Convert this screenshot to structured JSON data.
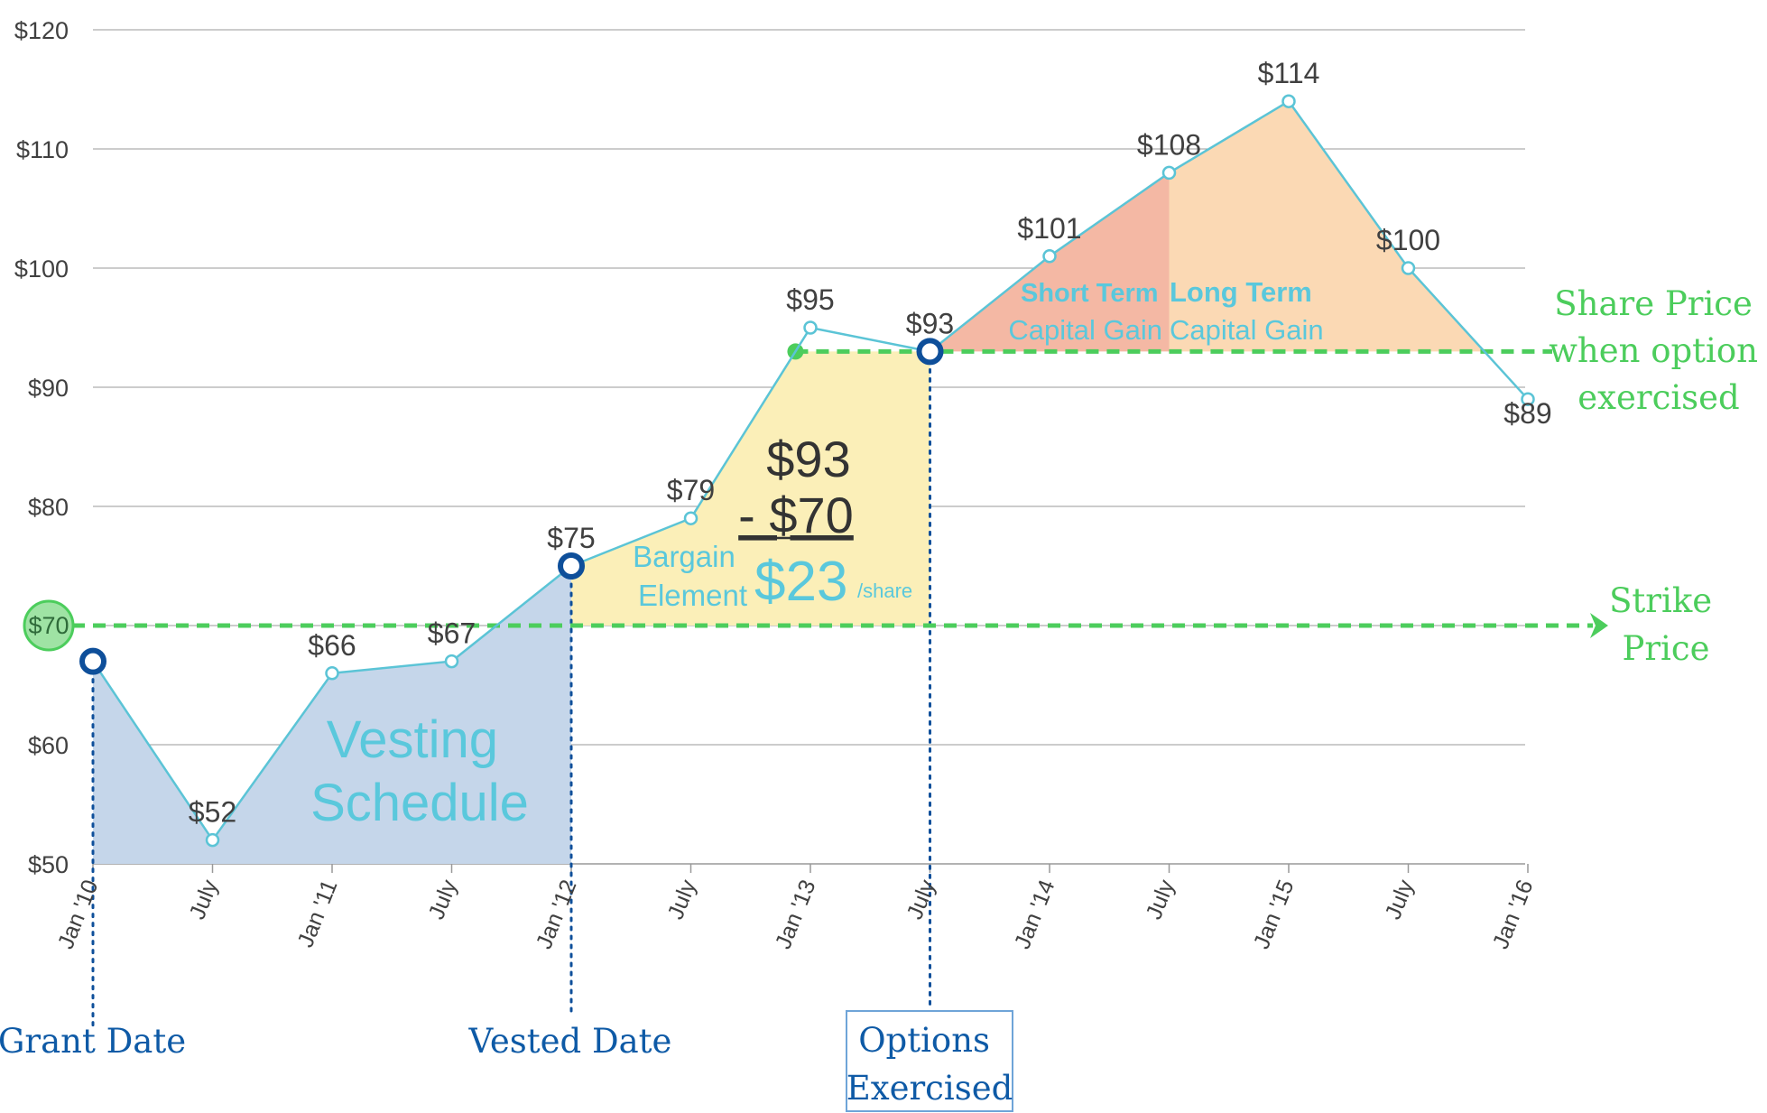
{
  "chart_data": {
    "type": "line",
    "x": [
      "Jan '10",
      "July",
      "Jan '11",
      "July",
      "Jan '12",
      "July",
      "Jan '13",
      "July",
      "Jan '14",
      "July",
      "Jan '15",
      "July",
      "Jan '16"
    ],
    "series": [
      {
        "values": [
          67,
          52,
          66,
          67,
          75,
          79,
          95,
          93,
          101,
          108,
          114,
          100,
          89
        ]
      }
    ],
    "data_labels": [
      "",
      "$52",
      "$66",
      "$67",
      "$75",
      "$79",
      "$95",
      "$93",
      "$101",
      "$108",
      "$114",
      "$100",
      "$89"
    ],
    "y_ticks": [
      50,
      60,
      70,
      80,
      90,
      100,
      110,
      120
    ],
    "y_tick_labels": [
      "$50",
      "$60",
      "$70",
      "$80",
      "$90",
      "$100",
      "$110",
      "$120"
    ],
    "ylim": [
      50,
      120
    ],
    "grid": true,
    "strike_price": 70,
    "exercise_price": 93,
    "grant_index": 0,
    "vested_index": 4,
    "exercised_index": 7,
    "colors": {
      "line": "#5bc4d6",
      "vesting_fill": "#c5d6ea",
      "bargain_fill": "#fbefb8",
      "short_term_fill": "#f4b8a4",
      "long_term_fill": "#fbd9b4",
      "green": "#4ccd5c",
      "blue_marker": "#0e4f9a",
      "date_text": "#0e5aa6",
      "cyan_text": "#5ac8dc"
    }
  },
  "labels": {
    "strike_badge": "$70",
    "vesting": [
      "Vesting",
      "Schedule"
    ],
    "calc_top": "$93",
    "calc_minus": "- $70",
    "bargain": [
      "Bargain",
      "Element"
    ],
    "bargain_value": "$23",
    "per_share": "/share",
    "short_term": [
      "Short Term",
      "Capital Gain"
    ],
    "long_term": [
      "Long Term",
      "Capital Gain"
    ],
    "share_price_exercised": [
      "Share Price",
      "when option",
      "exercised"
    ],
    "strike_price": [
      "Strike",
      "Price"
    ],
    "grant_date": "Grant Date",
    "vested_date": "Vested Date",
    "options_exercised": [
      "Options",
      "Exercised"
    ]
  }
}
